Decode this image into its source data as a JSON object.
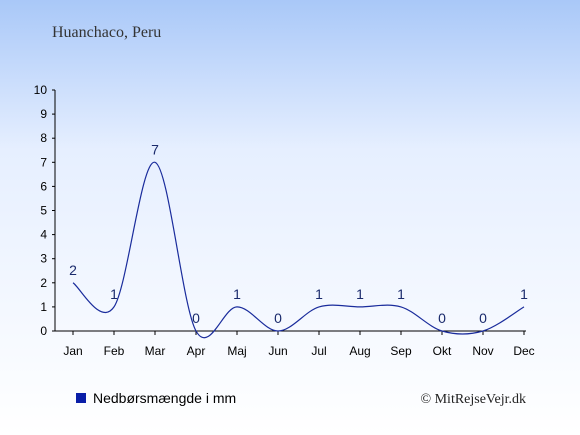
{
  "title": "Huanchaco, Peru",
  "legend_label": "Nedbørsmængde i mm",
  "credit": "© MitRejseVejr.dk",
  "colors": {
    "line": "#1a2c9c",
    "legend_swatch": "#0a1ea8",
    "axis": "#000000"
  },
  "chart_data": {
    "type": "line",
    "categories": [
      "Jan",
      "Feb",
      "Mar",
      "Apr",
      "Maj",
      "Jun",
      "Jul",
      "Aug",
      "Sep",
      "Okt",
      "Nov",
      "Dec"
    ],
    "series": [
      {
        "name": "Nedbørsmængde i mm",
        "values": [
          2,
          1,
          7,
          0,
          1,
          0,
          1,
          1,
          1,
          0,
          0,
          1
        ]
      }
    ],
    "y_ticks": [
      0,
      1,
      2,
      3,
      4,
      5,
      6,
      7,
      8,
      9,
      10
    ],
    "ylim": [
      0,
      10
    ],
    "grid": false,
    "legend_position": "bottom-left"
  }
}
